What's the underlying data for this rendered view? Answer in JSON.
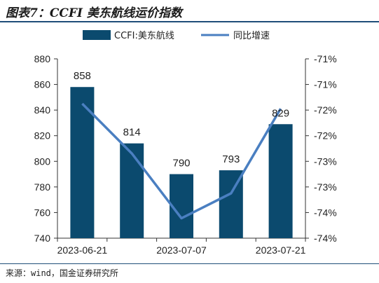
{
  "header": {
    "title": "图表7：CCFI 美东航线运价指数"
  },
  "footer": {
    "source": "来源：wind，国金证券研究所"
  },
  "colors": {
    "bar": "#0b4a6e",
    "line": "#4a7fc1",
    "rule": "#1f4e79"
  },
  "chart_data": {
    "type": "bar",
    "categories": [
      "2023-06-21",
      "",
      "2023-07-07",
      "",
      "2023-07-21"
    ],
    "series": [
      {
        "name": "CCFI:美东航线",
        "type": "bar",
        "axis": "left",
        "values": [
          858,
          814,
          790,
          793,
          829
        ]
      },
      {
        "name": "同比增速",
        "type": "line",
        "axis": "right",
        "values": [
          -71.8,
          -72.8,
          -74.1,
          -73.6,
          -71.9
        ]
      }
    ],
    "data_labels": [
      "858",
      "814",
      "790",
      "793",
      "829"
    ],
    "y_left": {
      "min": 740,
      "max": 880,
      "ticks": [
        "880",
        "860",
        "840",
        "820",
        "800",
        "780",
        "760",
        "740"
      ]
    },
    "y_right": {
      "ticks": [
        "-71%",
        "-71%",
        "-72%",
        "-72%",
        "-73%",
        "-73%",
        "-74%",
        "-74%"
      ]
    },
    "x_tick_labels": [
      "2023-06-21",
      "2023-07-07",
      "2023-07-21"
    ],
    "legend": "top"
  }
}
